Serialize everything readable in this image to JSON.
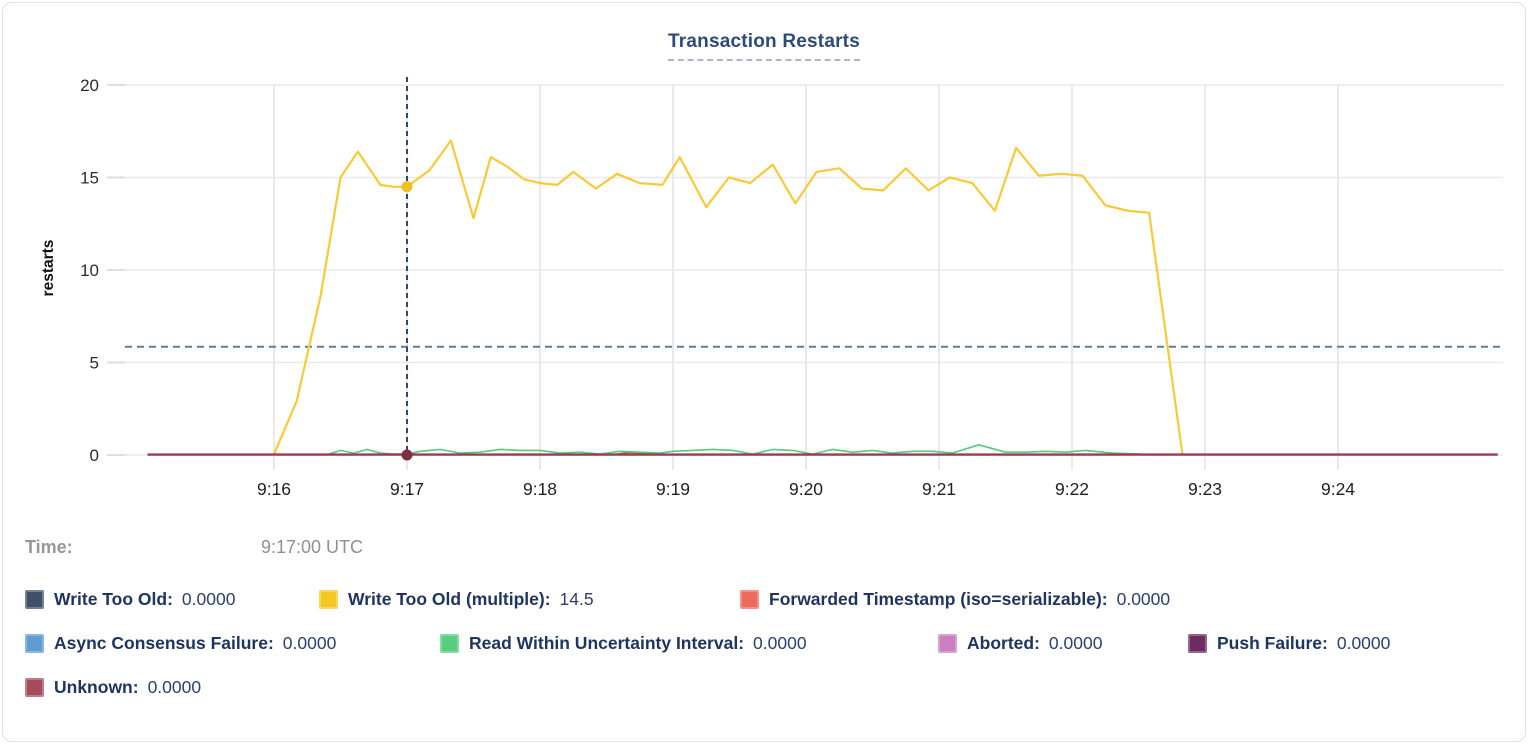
{
  "title": "Transaction Restarts",
  "time": {
    "label": "Time:",
    "value": "9:17:00 UTC"
  },
  "chart_data": {
    "type": "line",
    "title": "Transaction Restarts",
    "xlabel": "",
    "ylabel": "restarts",
    "ylim": [
      0,
      20
    ],
    "yticks": [
      0,
      5,
      10,
      15,
      20
    ],
    "xticks": {
      "labels": [
        "9:16",
        "9:17",
        "9:18",
        "9:19",
        "9:20",
        "9:21",
        "9:22",
        "9:23",
        "9:24"
      ],
      "minutes": [
        16,
        17,
        18,
        19,
        20,
        21,
        22,
        23,
        24
      ]
    },
    "grid": true,
    "threshold_value": 5.85,
    "crosshair": {
      "minute": 17,
      "time_label": "9:17:00 UTC",
      "dots": [
        {
          "series": "Write Too Old (multiple)",
          "value": 14.5,
          "color": "#f2c11e"
        },
        {
          "series": "Unknown",
          "value": 0,
          "color": "#7e2f44"
        }
      ]
    },
    "series": [
      {
        "name": "Write Too Old",
        "color": "#3d5168",
        "width": 1.8,
        "points": [
          [
            15.05,
            0.02
          ],
          [
            25.2,
            0.02
          ]
        ]
      },
      {
        "name": "Write Too Old (multiple)",
        "color": "#f9ca33",
        "width": 2.2,
        "points": [
          [
            16,
            0.05
          ],
          [
            16.17,
            2.9
          ],
          [
            16.35,
            8.6
          ],
          [
            16.5,
            15
          ],
          [
            16.63,
            16.4
          ],
          [
            16.8,
            14.6
          ],
          [
            16.9,
            14.5
          ],
          [
            17,
            14.5
          ],
          [
            17.17,
            15.4
          ],
          [
            17.33,
            17
          ],
          [
            17.5,
            12.8
          ],
          [
            17.63,
            16.1
          ],
          [
            17.75,
            15.6
          ],
          [
            17.88,
            14.9
          ],
          [
            18,
            14.7
          ],
          [
            18.13,
            14.6
          ],
          [
            18.25,
            15.3
          ],
          [
            18.42,
            14.4
          ],
          [
            18.58,
            15.2
          ],
          [
            18.75,
            14.7
          ],
          [
            18.92,
            14.6
          ],
          [
            19.05,
            16.1
          ],
          [
            19.25,
            13.4
          ],
          [
            19.42,
            15
          ],
          [
            19.58,
            14.7
          ],
          [
            19.75,
            15.7
          ],
          [
            19.92,
            13.6
          ],
          [
            20.08,
            15.3
          ],
          [
            20.25,
            15.5
          ],
          [
            20.42,
            14.4
          ],
          [
            20.58,
            14.3
          ],
          [
            20.75,
            15.5
          ],
          [
            20.92,
            14.3
          ],
          [
            21.08,
            15
          ],
          [
            21.25,
            14.7
          ],
          [
            21.42,
            13.2
          ],
          [
            21.58,
            16.6
          ],
          [
            21.75,
            15.1
          ],
          [
            21.92,
            15.2
          ],
          [
            22.08,
            15.1
          ],
          [
            22.25,
            13.5
          ],
          [
            22.42,
            13.2
          ],
          [
            22.58,
            13.1
          ],
          [
            22.83,
            0.05
          ]
        ]
      },
      {
        "name": "Forwarded Timestamp (iso=serializable)",
        "color": "#e2524f",
        "width": 1.8,
        "points": [
          [
            15.05,
            0.02
          ],
          [
            18.55,
            0.02
          ],
          [
            18.68,
            0.14
          ],
          [
            18.82,
            0.1
          ],
          [
            18.95,
            0.02
          ],
          [
            25.2,
            0.02
          ]
        ]
      },
      {
        "name": "Async Consensus Failure",
        "color": "#5f9cd2",
        "width": 1.8,
        "points": [
          [
            15.05,
            0.02
          ],
          [
            25.2,
            0.02
          ]
        ]
      },
      {
        "name": "Read Within Uncertainty Interval",
        "color": "#4fcd7a",
        "width": 1.6,
        "points": [
          [
            16.4,
            0.02
          ],
          [
            16.5,
            0.25
          ],
          [
            16.6,
            0.1
          ],
          [
            16.7,
            0.3
          ],
          [
            16.8,
            0.1
          ],
          [
            16.9,
            0.05
          ],
          [
            17,
            0.05
          ],
          [
            17.1,
            0.2
          ],
          [
            17.25,
            0.3
          ],
          [
            17.4,
            0.1
          ],
          [
            17.55,
            0.15
          ],
          [
            17.7,
            0.3
          ],
          [
            17.85,
            0.25
          ],
          [
            18,
            0.25
          ],
          [
            18.15,
            0.1
          ],
          [
            18.3,
            0.15
          ],
          [
            18.45,
            0.05
          ],
          [
            18.6,
            0.2
          ],
          [
            18.75,
            0.15
          ],
          [
            18.9,
            0.1
          ],
          [
            19,
            0.2
          ],
          [
            19.15,
            0.25
          ],
          [
            19.3,
            0.3
          ],
          [
            19.45,
            0.25
          ],
          [
            19.6,
            0.05
          ],
          [
            19.75,
            0.3
          ],
          [
            19.9,
            0.25
          ],
          [
            20.05,
            0.05
          ],
          [
            20.2,
            0.3
          ],
          [
            20.35,
            0.15
          ],
          [
            20.5,
            0.25
          ],
          [
            20.65,
            0.1
          ],
          [
            20.8,
            0.2
          ],
          [
            20.95,
            0.2
          ],
          [
            21.1,
            0.1
          ],
          [
            21.3,
            0.55
          ],
          [
            21.5,
            0.15
          ],
          [
            21.65,
            0.15
          ],
          [
            21.8,
            0.2
          ],
          [
            21.95,
            0.15
          ],
          [
            22.1,
            0.25
          ],
          [
            22.3,
            0.1
          ],
          [
            22.5,
            0.05
          ],
          [
            22.6,
            0.02
          ]
        ]
      },
      {
        "name": "Aborted",
        "color": "#ca7fc3",
        "width": 1.8,
        "points": [
          [
            15.05,
            0.02
          ],
          [
            25.2,
            0.02
          ]
        ]
      },
      {
        "name": "Push Failure",
        "color": "#6e2b61",
        "width": 1.8,
        "points": [
          [
            15.05,
            0.02
          ],
          [
            25.2,
            0.02
          ]
        ]
      },
      {
        "name": "Unknown",
        "color": "#9d3a51",
        "width": 2.4,
        "points": [
          [
            15.05,
            0.02
          ],
          [
            25.2,
            0.02
          ]
        ]
      }
    ]
  },
  "legend": {
    "rows": [
      [
        {
          "name": "Write Too Old",
          "value": "0.0000",
          "color": "#3d5168"
        },
        {
          "name": "Write Too Old (multiple)",
          "value": "14.5",
          "color": "#f5c722"
        },
        {
          "name": "Forwarded Timestamp (iso=serializable)",
          "value": "0.0000",
          "color": "#ee6a5f"
        }
      ],
      [
        {
          "name": "Async Consensus Failure",
          "value": "0.0000",
          "color": "#5f9cd2"
        },
        {
          "name": "Read Within Uncertainty Interval",
          "value": "0.0000",
          "color": "#57ce7d"
        },
        {
          "name": "Aborted",
          "value": "0.0000",
          "color": "#ca7fc3"
        },
        {
          "name": "Push Failure",
          "value": "0.0000",
          "color": "#6e2b61"
        }
      ],
      [
        {
          "name": "Unknown",
          "value": "0.0000",
          "color": "#a74a5c"
        }
      ]
    ]
  }
}
